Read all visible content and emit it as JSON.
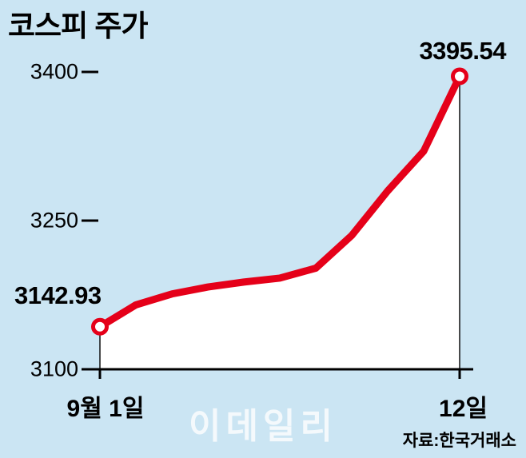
{
  "page": {
    "title": "코스피 주가"
  },
  "chart_data": {
    "type": "line",
    "title": "코스피 주가",
    "ylim": [
      3100,
      3400
    ],
    "yticks": [
      "3400",
      "3250",
      "3100"
    ],
    "ytick_values": [
      3400,
      3250,
      3100
    ],
    "x_start_label": "9월 1일",
    "x_end_label": "12일",
    "series": [
      {
        "name": "코스피",
        "color": "#e50019",
        "values": [
          3142.93,
          3165,
          3176,
          3183,
          3188,
          3192,
          3202,
          3235,
          3280,
          3320,
          3395.54
        ]
      }
    ],
    "start_annotation": "3142.93",
    "end_annotation": "3395.54",
    "marker": {
      "fill": "#ffffff",
      "stroke": "#e50019"
    },
    "background": "#cbe5f3",
    "plot_fill": "#ffffff",
    "axis_color": "#000000",
    "legend": "off",
    "grid": "off"
  },
  "footer": {
    "watermark": "이데일리",
    "source": "자료:한국거래소"
  }
}
